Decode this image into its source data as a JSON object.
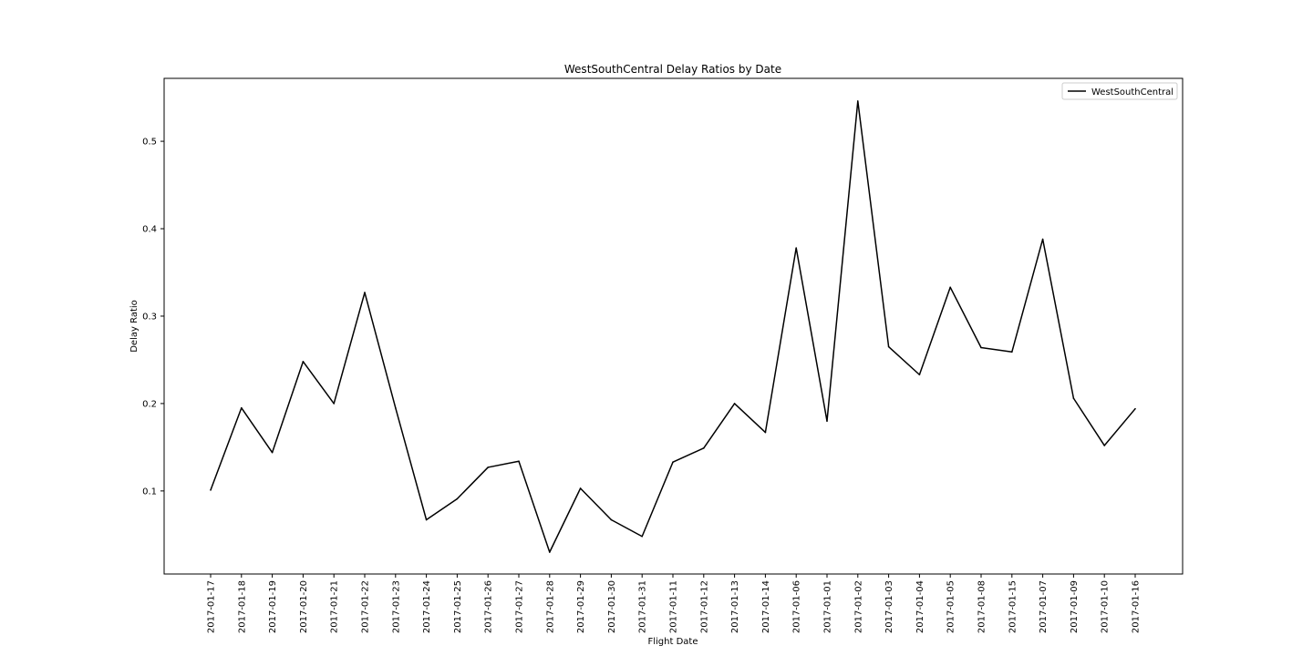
{
  "chart_data": {
    "type": "line",
    "title": "WestSouthCentral Delay Ratios by Date",
    "xlabel": "Flight Date",
    "ylabel": "Delay Ratio",
    "ylim": [
      0.005,
      0.572
    ],
    "yticks": [
      "0.1",
      "0.2",
      "0.3",
      "0.4",
      "0.5"
    ],
    "ytick_values": [
      0.1,
      0.2,
      0.3,
      0.4,
      0.5
    ],
    "legend_position": "top-right",
    "grid": false,
    "categories": [
      "2017-01-17",
      "2017-01-18",
      "2017-01-19",
      "2017-01-20",
      "2017-01-21",
      "2017-01-22",
      "2017-01-23",
      "2017-01-24",
      "2017-01-25",
      "2017-01-26",
      "2017-01-27",
      "2017-01-28",
      "2017-01-29",
      "2017-01-30",
      "2017-01-31",
      "2017-01-11",
      "2017-01-12",
      "2017-01-13",
      "2017-01-14",
      "2017-01-06",
      "2017-01-01",
      "2017-01-02",
      "2017-01-03",
      "2017-01-04",
      "2017-01-05",
      "2017-01-08",
      "2017-01-15",
      "2017-01-07",
      "2017-01-09",
      "2017-01-10",
      "2017-01-16"
    ],
    "series": [
      {
        "name": "WestSouthCentral",
        "color": "#000000",
        "values": [
          0.101,
          0.195,
          0.144,
          0.248,
          0.2,
          0.327,
          0.195,
          0.067,
          0.091,
          0.127,
          0.134,
          0.03,
          0.103,
          0.067,
          0.048,
          0.133,
          0.149,
          0.2,
          0.167,
          0.378,
          0.18,
          0.546,
          0.265,
          0.233,
          0.333,
          0.264,
          0.259,
          0.388,
          0.206,
          0.152,
          0.194
        ]
      }
    ]
  }
}
